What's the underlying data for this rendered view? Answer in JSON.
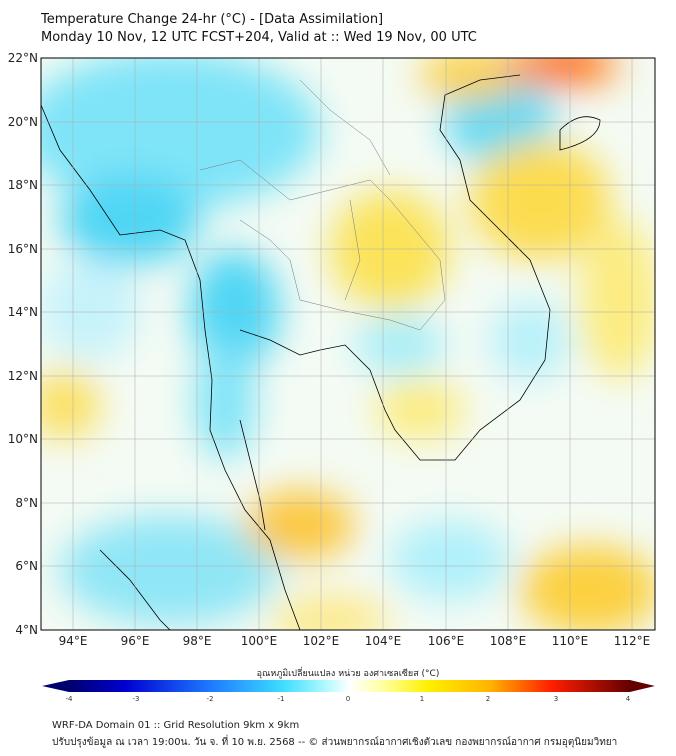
{
  "header": {
    "title": "Temperature Change 24-hr (°C) - [Data Assimilation]",
    "subtitle": "Monday 10 Nov, 12 UTC FCST+204, Valid at :: Wed 19 Nov, 00 UTC"
  },
  "map": {
    "lat_labels": [
      "22°N",
      "20°N",
      "18°N",
      "16°N",
      "14°N",
      "12°N",
      "10°N",
      "8°N",
      "6°N",
      "4°N"
    ],
    "lon_labels": [
      "94°E",
      "96°E",
      "98°E",
      "100°E",
      "102°E",
      "104°E",
      "106°E",
      "108°E",
      "110°E",
      "112°E"
    ]
  },
  "colorbar": {
    "label": "อุณหภูมิเปลี่ยนแปลง หน่วย องศาเซลเซียส (°C)",
    "ticks": [
      "-4",
      "-3",
      "-2",
      "-1",
      "0",
      "1",
      "2",
      "3",
      "4"
    ],
    "colors": [
      "#00006e",
      "#0000d8",
      "#1e64ff",
      "#28c8ff",
      "#50f0ff",
      "#c8ffff",
      "#ffffff",
      "#ffffa0",
      "#fff000",
      "#ffc800",
      "#ff7800",
      "#ff0000",
      "#b40000",
      "#640000"
    ]
  },
  "footer": {
    "line1": "WRF-DA Domain 01 :: Grid Resolution 9km x 9km",
    "line2": "ปรับปรุงข้อมูล ณ เวลา 19:00น. วัน จ. ที่ 10 พ.ย. 2568 -- © ส่วนพยากรณ์อากาศเชิงตัวเลข กองพยากรณ์อากาศ กรมอุตุนิยมวิทยา"
  }
}
